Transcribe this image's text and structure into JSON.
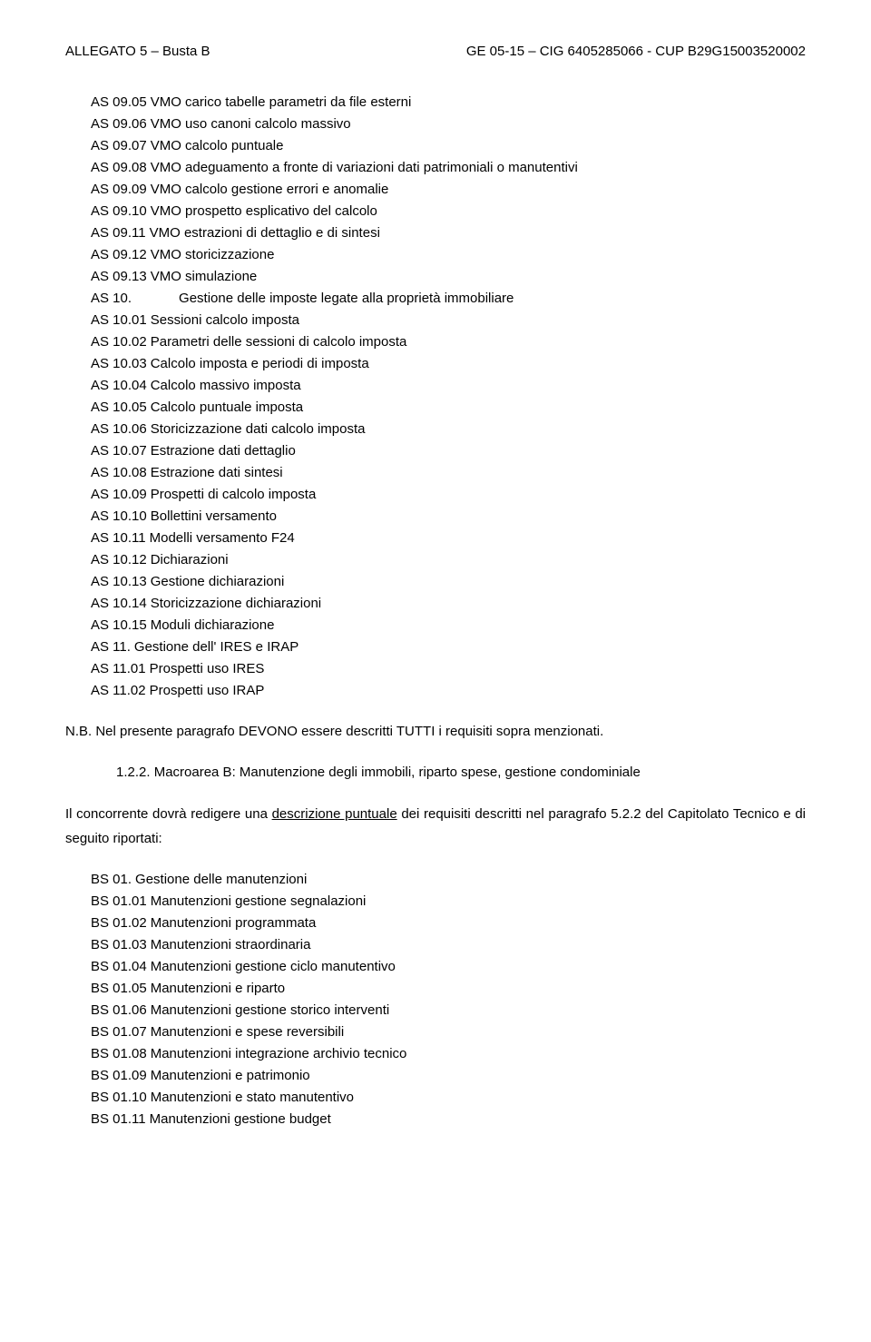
{
  "header": {
    "left": "ALLEGATO 5 – Busta B",
    "right": "GE 05-15 – CIG 6405285066 - CUP B29G15003520002"
  },
  "list_as": [
    {
      "code": "AS 09.05",
      "text": "VMO carico tabelle parametri da file esterni"
    },
    {
      "code": "AS 09.06",
      "text": "VMO uso canoni calcolo massivo"
    },
    {
      "code": "AS 09.07",
      "text": "VMO calcolo puntuale"
    },
    {
      "code": "AS 09.08",
      "text": "VMO adeguamento a fronte di variazioni dati patrimoniali o manutentivi"
    },
    {
      "code": "AS 09.09",
      "text": "VMO calcolo gestione errori e anomalie"
    },
    {
      "code": "AS 09.10",
      "text": "VMO prospetto esplicativo del calcolo"
    },
    {
      "code": "AS 09.11",
      "text": "VMO estrazioni di dettaglio e di sintesi"
    },
    {
      "code": "AS 09.12",
      "text": "VMO storicizzazione"
    },
    {
      "code": "AS 09.13",
      "text": "VMO simulazione"
    },
    {
      "code": "AS 10.",
      "text": "Gestione delle imposte legate alla proprietà immobiliare",
      "indent": true
    },
    {
      "code": "AS 10.01",
      "text": "Sessioni calcolo imposta"
    },
    {
      "code": "AS 10.02",
      "text": "Parametri delle sessioni di calcolo imposta"
    },
    {
      "code": "AS 10.03",
      "text": "Calcolo imposta e periodi di imposta"
    },
    {
      "code": "AS 10.04",
      "text": "Calcolo massivo imposta"
    },
    {
      "code": "AS 10.05",
      "text": "Calcolo puntuale imposta"
    },
    {
      "code": "AS 10.06",
      "text": "Storicizzazione dati calcolo imposta"
    },
    {
      "code": "AS 10.07",
      "text": "Estrazione dati dettaglio"
    },
    {
      "code": "AS 10.08",
      "text": "Estrazione dati sintesi"
    },
    {
      "code": "AS 10.09",
      "text": "Prospetti di calcolo imposta"
    },
    {
      "code": "AS 10.10",
      "text": "Bollettini versamento"
    },
    {
      "code": "AS 10.11",
      "text": "Modelli versamento F24"
    },
    {
      "code": "AS 10.12",
      "text": "Dichiarazioni"
    },
    {
      "code": "AS 10.13",
      "text": "Gestione dichiarazioni"
    },
    {
      "code": "AS 10.14",
      "text": "Storicizzazione dichiarazioni"
    },
    {
      "code": "AS 10.15",
      "text": "Moduli dichiarazione"
    },
    {
      "code": "AS 11.",
      "text": "Gestione dell' IRES e IRAP"
    },
    {
      "code": "AS 11.01",
      "text": "Prospetti uso IRES"
    },
    {
      "code": "AS 11.02",
      "text": "Prospetti uso IRAP"
    }
  ],
  "nb_text": "N.B. Nel presente paragrafo DEVONO essere descritti TUTTI i requisiti sopra menzionati.",
  "section_heading": "1.2.2.  Macroarea B: Manutenzione degli immobili, riparto spese, gestione condominiale",
  "body_para_pre": "Il concorrente dovrà redigere una ",
  "body_para_underline": "descrizione puntuale",
  "body_para_post": " dei requisiti descritti nel paragrafo 5.2.2 del Capitolato Tecnico e di seguito riportati:",
  "list_bs": [
    {
      "code": "BS 01.",
      "text": "Gestione delle manutenzioni"
    },
    {
      "code": "BS 01.01",
      "text": "Manutenzioni gestione segnalazioni"
    },
    {
      "code": "BS 01.02",
      "text": "Manutenzioni programmata"
    },
    {
      "code": "BS 01.03",
      "text": "Manutenzioni straordinaria"
    },
    {
      "code": "BS 01.04",
      "text": "Manutenzioni gestione ciclo manutentivo"
    },
    {
      "code": "BS 01.05",
      "text": "Manutenzioni e riparto"
    },
    {
      "code": "BS 01.06",
      "text": "Manutenzioni gestione storico interventi"
    },
    {
      "code": "BS 01.07",
      "text": "Manutenzioni e spese reversibili"
    },
    {
      "code": "BS 01.08",
      "text": "Manutenzioni integrazione archivio tecnico"
    },
    {
      "code": "BS 01.09",
      "text": "Manutenzioni e patrimonio"
    },
    {
      "code": "BS 01.10",
      "text": "Manutenzioni e stato manutentivo"
    },
    {
      "code": "BS 01.11",
      "text": "Manutenzioni gestione budget"
    }
  ]
}
